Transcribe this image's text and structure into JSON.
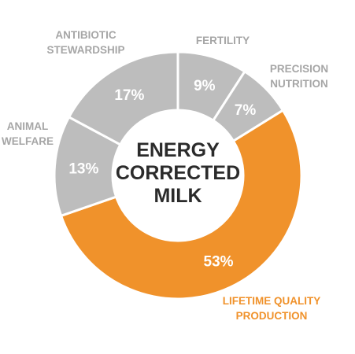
{
  "chart_data": {
    "type": "pie",
    "style": "donut",
    "center_label": [
      "ENERGY",
      "CORRECTED",
      "MILK"
    ],
    "slices": [
      {
        "label": [
          "FERTILITY"
        ],
        "value": 9,
        "value_label": "9%",
        "color": "#bdbdbd"
      },
      {
        "label": [
          "PRECISION",
          "NUTRITION"
        ],
        "value": 7,
        "value_label": "7%",
        "color": "#bdbdbd"
      },
      {
        "label": [
          "LIFETIME QUALITY",
          "PRODUCTION"
        ],
        "value": 53,
        "value_label": "53%",
        "color": "#f0922b"
      },
      {
        "label": [
          "ANIMAL",
          "WELFARE"
        ],
        "value": 13,
        "value_label": "13%",
        "color": "#bdbdbd"
      },
      {
        "label": [
          "ANTIBIOTIC",
          "STEWARDSHIP"
        ],
        "value": 17,
        "value_label": "17%",
        "color": "#bdbdbd"
      }
    ],
    "colors": {
      "gray": "#bdbdbd",
      "gray_label": "#a6a6a6",
      "accent": "#f0922b",
      "center_text": "#2b2b2b"
    }
  }
}
